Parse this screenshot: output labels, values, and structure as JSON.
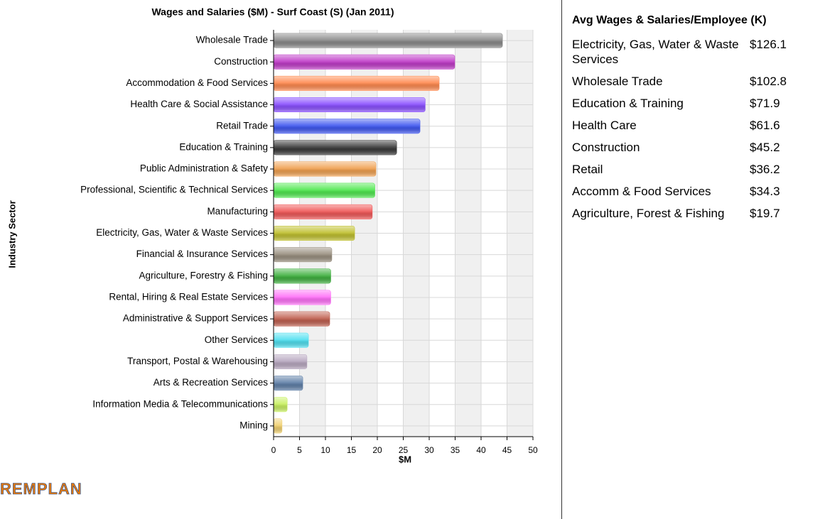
{
  "chart_data": {
    "type": "bar",
    "orientation": "horizontal",
    "title": "Wages and Salaries ($M) - Surf Coast (S) (Jan 2011)",
    "x_label": "$M",
    "y_label": "Industry Sector",
    "categories": [
      "Wholesale Trade",
      "Construction",
      "Accommodation & Food Services",
      "Health Care & Social Assistance",
      "Retail Trade",
      "Education & Training",
      "Public Administration & Safety",
      "Professional, Scientific & Technical Services",
      "Manufacturing",
      "Electricity, Gas, Water & Waste Services",
      "Financial & Insurance Services",
      "Agriculture, Forestry & Fishing",
      "Rental, Hiring & Real Estate Services",
      "Administrative & Support Services",
      "Other Services",
      "Transport, Postal & Warehousing",
      "Arts & Recreation Services",
      "Information Media & Telecommunications",
      "Mining"
    ],
    "values": [
      44.1,
      34.9,
      31.9,
      29.2,
      28.2,
      23.7,
      19.7,
      19.5,
      19.0,
      15.6,
      11.2,
      11.0,
      11.0,
      10.8,
      6.7,
      6.4,
      5.6,
      2.6,
      1.6
    ],
    "colors": [
      "#8a8a8a",
      "#c03cc8",
      "#ff8a50",
      "#8a50ff",
      "#4058f0",
      "#3a3a3a",
      "#f0a050",
      "#50e850",
      "#f05858",
      "#c0c030",
      "#9a9080",
      "#40b040",
      "#ff70f8",
      "#c06050",
      "#50e0f0",
      "#b8a8c0",
      "#6080a8",
      "#c8f060",
      "#f0d070"
    ],
    "xlim": [
      0,
      50
    ],
    "xticks": [
      0,
      5,
      10,
      15,
      20,
      25,
      30,
      35,
      40,
      45,
      50
    ],
    "grid": true
  },
  "table": {
    "title": "Avg Wages & Salaries/Employee (K)",
    "rows": [
      [
        "Electricity, Gas, Water & Waste Services",
        "$126.1"
      ],
      [
        "Wholesale Trade",
        "$102.8"
      ],
      [
        "Education & Training",
        "$71.9"
      ],
      [
        "Health Care",
        "$61.6"
      ],
      [
        "Construction",
        "$45.2"
      ],
      [
        "Retail",
        "$36.2"
      ],
      [
        "Accomm & Food Services",
        "$34.3"
      ],
      [
        "Agriculture, Forest & Fishing",
        "$19.7"
      ]
    ]
  },
  "logo": "REMPLAN"
}
